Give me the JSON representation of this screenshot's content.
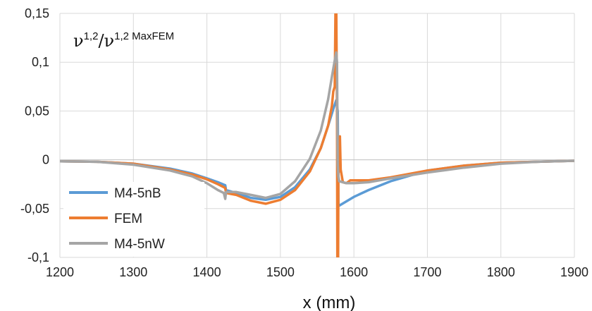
{
  "chart_data": {
    "type": "line",
    "xlabel": "x (mm)",
    "ylabel": "",
    "xlim": [
      1200,
      1900
    ],
    "ylim": [
      -0.1,
      0.15
    ],
    "x_ticks": [
      1200,
      1300,
      1400,
      1500,
      1600,
      1700,
      1800,
      1900
    ],
    "x_tick_labels": [
      "1200",
      "1300",
      "1400",
      "1500",
      "1600",
      "1700",
      "1800",
      "1900"
    ],
    "y_ticks": [
      -0.1,
      -0.05,
      0,
      0.05,
      0.1,
      0.15
    ],
    "y_tick_labels": [
      "-0,1",
      "-0,05",
      "0",
      "0,05",
      "0,1",
      "0,15"
    ],
    "grid": true,
    "legend_position": "bottom-left",
    "annotation": {
      "main": "ν",
      "sup1": "1,2",
      "slash": "/ν",
      "sup2": "1,2 MaxFEM"
    },
    "series": [
      {
        "name": "M4-5nB",
        "color": "#5B9BD5",
        "points": [
          [
            1200,
            -0.0015
          ],
          [
            1250,
            -0.002
          ],
          [
            1300,
            -0.004
          ],
          [
            1350,
            -0.009
          ],
          [
            1380,
            -0.014
          ],
          [
            1400,
            -0.019
          ],
          [
            1415,
            -0.023
          ],
          [
            1423,
            -0.0255
          ],
          [
            1425,
            -0.026
          ],
          [
            1426,
            -0.031
          ],
          [
            1440,
            -0.034
          ],
          [
            1460,
            -0.039
          ],
          [
            1480,
            -0.041
          ],
          [
            1500,
            -0.038
          ],
          [
            1520,
            -0.028
          ],
          [
            1540,
            -0.01
          ],
          [
            1555,
            0.012
          ],
          [
            1565,
            0.035
          ],
          [
            1572,
            0.052
          ],
          [
            1576,
            0.061
          ],
          [
            1578,
            0.05
          ],
          [
            1579,
            -0.045
          ],
          [
            1580,
            -0.047
          ],
          [
            1600,
            -0.038
          ],
          [
            1620,
            -0.031
          ],
          [
            1650,
            -0.022
          ],
          [
            1700,
            -0.011
          ],
          [
            1750,
            -0.006
          ],
          [
            1800,
            -0.003
          ],
          [
            1850,
            -0.002
          ],
          [
            1900,
            -0.001
          ]
        ]
      },
      {
        "name": "FEM",
        "color": "#ED7D31",
        "points": [
          [
            1200,
            -0.0015
          ],
          [
            1250,
            -0.002
          ],
          [
            1300,
            -0.004
          ],
          [
            1350,
            -0.01
          ],
          [
            1380,
            -0.015
          ],
          [
            1400,
            -0.02
          ],
          [
            1415,
            -0.025
          ],
          [
            1423,
            -0.028
          ],
          [
            1425,
            -0.029
          ],
          [
            1426,
            -0.034
          ],
          [
            1440,
            -0.036
          ],
          [
            1460,
            -0.042
          ],
          [
            1480,
            -0.045
          ],
          [
            1500,
            -0.041
          ],
          [
            1520,
            -0.031
          ],
          [
            1540,
            -0.012
          ],
          [
            1555,
            0.012
          ],
          [
            1565,
            0.035
          ],
          [
            1570,
            0.055
          ],
          [
            1572,
            0.07
          ],
          [
            1574,
            0.075
          ],
          [
            1575,
            0.16
          ],
          [
            1576,
            0.16
          ],
          [
            1577,
            0.05
          ],
          [
            1577.5,
            -0.11
          ],
          [
            1578.5,
            -0.11
          ],
          [
            1579,
            -0.005
          ],
          [
            1580,
            -0.012
          ],
          [
            1581,
            0.024
          ],
          [
            1582,
            -0.01
          ],
          [
            1585,
            -0.023
          ],
          [
            1590,
            -0.024
          ],
          [
            1595,
            -0.021
          ],
          [
            1620,
            -0.021
          ],
          [
            1650,
            -0.018
          ],
          [
            1700,
            -0.011
          ],
          [
            1750,
            -0.006
          ],
          [
            1800,
            -0.003
          ],
          [
            1850,
            -0.002
          ],
          [
            1900,
            -0.001
          ]
        ]
      },
      {
        "name": "M4-5nW",
        "color": "#A5A5A5",
        "points": [
          [
            1200,
            -0.0015
          ],
          [
            1250,
            -0.002
          ],
          [
            1300,
            -0.005
          ],
          [
            1350,
            -0.011
          ],
          [
            1380,
            -0.017
          ],
          [
            1400,
            -0.024
          ],
          [
            1415,
            -0.031
          ],
          [
            1423,
            -0.034
          ],
          [
            1425,
            -0.04
          ],
          [
            1426,
            -0.033
          ],
          [
            1440,
            -0.033
          ],
          [
            1460,
            -0.036
          ],
          [
            1480,
            -0.039
          ],
          [
            1500,
            -0.035
          ],
          [
            1520,
            -0.022
          ],
          [
            1540,
            0.001
          ],
          [
            1555,
            0.03
          ],
          [
            1565,
            0.062
          ],
          [
            1570,
            0.085
          ],
          [
            1574,
            0.102
          ],
          [
            1576,
            0.11
          ],
          [
            1577,
            0.1
          ],
          [
            1578,
            -0.005
          ],
          [
            1579,
            -0.017
          ],
          [
            1580,
            -0.022
          ],
          [
            1590,
            -0.024
          ],
          [
            1600,
            -0.024
          ],
          [
            1620,
            -0.023
          ],
          [
            1650,
            -0.019
          ],
          [
            1700,
            -0.013
          ],
          [
            1750,
            -0.008
          ],
          [
            1800,
            -0.004
          ],
          [
            1850,
            -0.002
          ],
          [
            1900,
            -0.001
          ]
        ]
      }
    ]
  }
}
